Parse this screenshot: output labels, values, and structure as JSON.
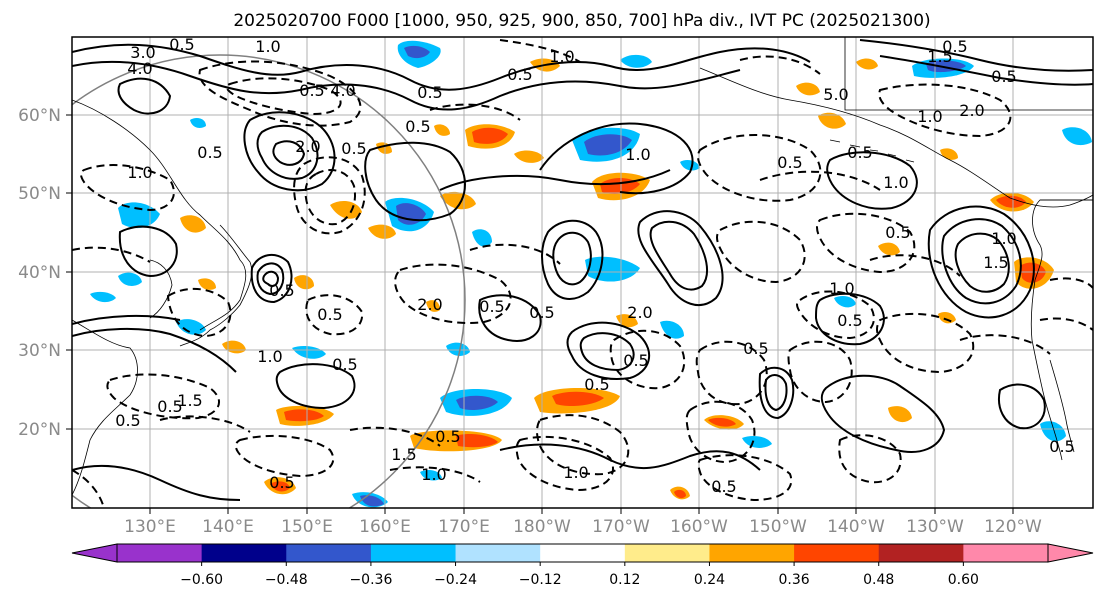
{
  "title": "2025020700 F000 [1000, 950, 925, 900, 850, 700] hPa div., IVT PC (2025021300)",
  "map": {
    "lat_labels": [
      "60°N",
      "50°N",
      "40°N",
      "30°N",
      "20°N"
    ],
    "lon_labels": [
      "130°E",
      "140°E",
      "150°E",
      "160°E",
      "170°E",
      "180°W",
      "170°W",
      "160°W",
      "150°W",
      "140°W",
      "130°W",
      "120°W"
    ],
    "contour_labels": [
      "3.0",
      "4.0",
      "0.5",
      "1.0",
      "4.0",
      "0.5",
      "2.0",
      "0.5",
      "0.5",
      "1.0",
      "0.5",
      "5.0",
      "1.0",
      "2.0",
      "0.5",
      "1.0",
      "0.5",
      "0.5",
      "1.0",
      "0.5",
      "0.5",
      "1.0",
      "0.5",
      "1.0",
      "0.5",
      "1.0",
      "1.5",
      "1.5",
      "0.5",
      "2.0",
      "0.5",
      "0.5",
      "0.5",
      "0.5",
      "1.0",
      "0.5",
      "0.5",
      "0.5",
      "1.5",
      "1.5",
      "0.5",
      "1.0",
      "0.5",
      "0.5",
      "2.0",
      "0.5",
      "0.5",
      "0.5",
      "1.0",
      "0.5"
    ]
  },
  "colorbar": {
    "ticks": [
      "−0.60",
      "−0.48",
      "−0.36",
      "−0.24",
      "−0.12",
      "0.12",
      "0.24",
      "0.36",
      "0.48",
      "0.60"
    ],
    "colors": [
      "#9932cc",
      "#00008b",
      "#3357cc",
      "#00bfff",
      "#b0e2ff",
      "#ffffff",
      "#ffec8b",
      "#ffa500",
      "#ff4500",
      "#b22222",
      "#ff88aa"
    ]
  }
}
